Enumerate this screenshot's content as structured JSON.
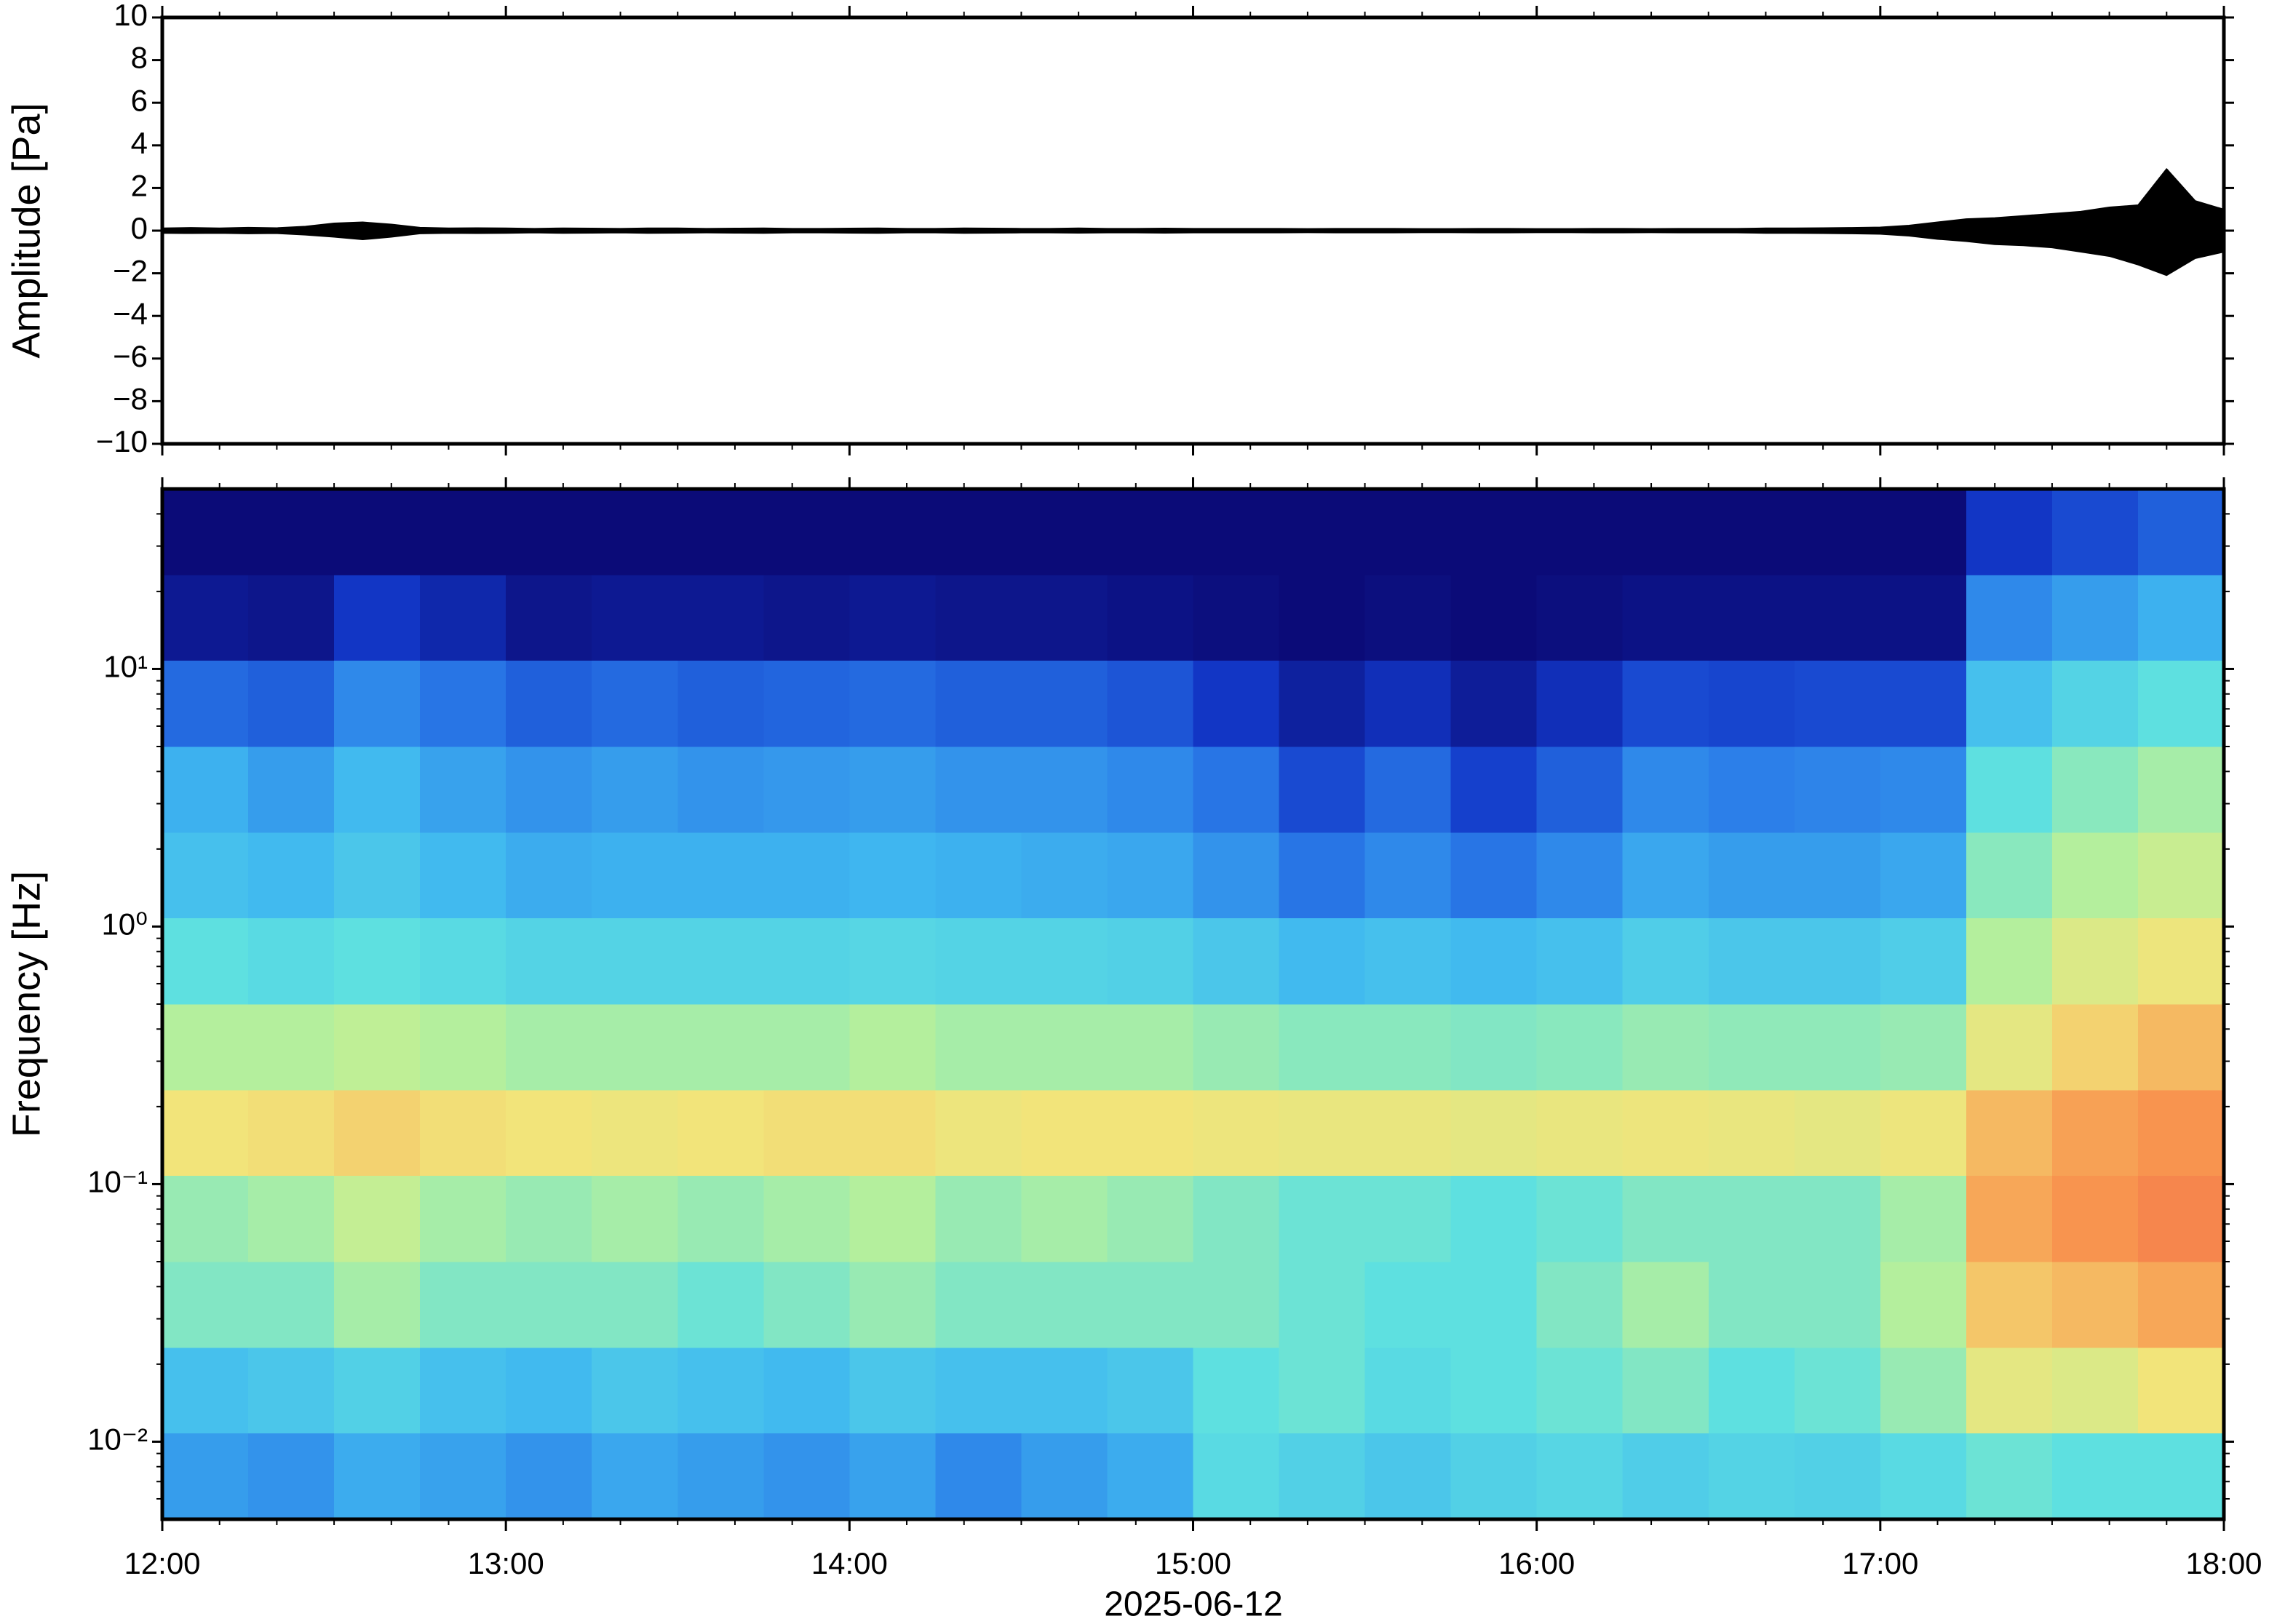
{
  "chart_data": [
    {
      "type": "line",
      "ylabel": "Amplitude [Pa]",
      "xlim": [
        "12:00",
        "18:00"
      ],
      "ylim": [
        -10,
        10
      ],
      "yticks": [
        {
          "value": -10,
          "label": "−10"
        },
        {
          "value": -8,
          "label": "−8"
        },
        {
          "value": -6,
          "label": "−6"
        },
        {
          "value": -4,
          "label": "−4"
        },
        {
          "value": -2,
          "label": "−2"
        },
        0,
        2,
        4,
        6,
        8,
        10
      ],
      "x": [
        "12:00",
        "12:05",
        "12:10",
        "12:15",
        "12:20",
        "12:25",
        "12:30",
        "12:35",
        "12:40",
        "12:45",
        "12:50",
        "12:55",
        "13:00",
        "13:05",
        "13:10",
        "13:15",
        "13:20",
        "13:25",
        "13:30",
        "13:35",
        "13:40",
        "13:45",
        "13:50",
        "13:55",
        "14:00",
        "14:05",
        "14:10",
        "14:15",
        "14:20",
        "14:25",
        "14:30",
        "14:35",
        "14:40",
        "14:45",
        "14:50",
        "14:55",
        "15:00",
        "15:05",
        "15:10",
        "15:15",
        "15:20",
        "15:25",
        "15:30",
        "15:35",
        "15:40",
        "15:45",
        "15:50",
        "15:55",
        "16:00",
        "16:05",
        "16:10",
        "16:15",
        "16:20",
        "16:25",
        "16:30",
        "16:35",
        "16:40",
        "16:45",
        "16:50",
        "16:55",
        "17:00",
        "17:05",
        "17:10",
        "17:15",
        "17:20",
        "17:25",
        "17:30",
        "17:35",
        "17:40",
        "17:45",
        "17:50",
        "17:55",
        "18:00"
      ],
      "series": [
        {
          "color": "#000000",
          "values": [
            0.12,
            0.14,
            0.12,
            0.15,
            0.13,
            0.2,
            0.35,
            0.4,
            0.3,
            0.15,
            0.12,
            0.13,
            0.12,
            0.1,
            0.12,
            0.11,
            0.1,
            0.12,
            0.12,
            0.1,
            0.11,
            0.12,
            0.1,
            0.1,
            0.11,
            0.12,
            0.1,
            0.1,
            0.12,
            0.11,
            0.1,
            0.1,
            0.12,
            0.1,
            0.1,
            0.11,
            0.1,
            0.1,
            0.1,
            0.1,
            0.09,
            0.1,
            0.1,
            0.1,
            0.09,
            0.09,
            0.1,
            0.1,
            0.09,
            0.09,
            0.1,
            0.1,
            0.09,
            0.1,
            0.1,
            0.1,
            0.12,
            0.12,
            0.13,
            0.14,
            0.16,
            0.25,
            0.4,
            0.55,
            0.6,
            0.7,
            0.8,
            0.9,
            1.1,
            1.2,
            2.9,
            1.4,
            1.0
          ]
        },
        {
          "color": "#000000",
          "values": [
            -0.12,
            -0.13,
            -0.12,
            -0.14,
            -0.13,
            -0.2,
            -0.3,
            -0.42,
            -0.3,
            -0.14,
            -0.12,
            -0.13,
            -0.12,
            -0.1,
            -0.12,
            -0.11,
            -0.1,
            -0.12,
            -0.11,
            -0.1,
            -0.11,
            -0.12,
            -0.1,
            -0.1,
            -0.11,
            -0.12,
            -0.1,
            -0.1,
            -0.12,
            -0.11,
            -0.1,
            -0.1,
            -0.11,
            -0.1,
            -0.1,
            -0.11,
            -0.1,
            -0.1,
            -0.1,
            -0.1,
            -0.09,
            -0.1,
            -0.1,
            -0.1,
            -0.09,
            -0.09,
            -0.1,
            -0.1,
            -0.09,
            -0.09,
            -0.1,
            -0.1,
            -0.09,
            -0.1,
            -0.1,
            -0.1,
            -0.12,
            -0.12,
            -0.13,
            -0.14,
            -0.16,
            -0.25,
            -0.4,
            -0.5,
            -0.65,
            -0.7,
            -0.8,
            -1.0,
            -1.2,
            -1.6,
            -2.1,
            -1.3,
            -1.0
          ]
        }
      ]
    },
    {
      "type": "heatmap",
      "ylabel": "Frequency [Hz]",
      "xlabel": "2025-06-12",
      "xlim": [
        "12:00",
        "18:00"
      ],
      "xticks": [
        "12:00",
        "13:00",
        "14:00",
        "15:00",
        "16:00",
        "17:00",
        "18:00"
      ],
      "ylim": [
        0.005,
        50
      ],
      "log_y": true,
      "yticks": [
        {
          "value": 0.01,
          "label": "10⁻²"
        },
        {
          "value": 0.1,
          "label": "10⁻¹"
        },
        {
          "value": 1,
          "label": "10⁰"
        },
        {
          "value": 10,
          "label": "10¹"
        }
      ],
      "x_bins": [
        "12:00",
        "12:15",
        "12:30",
        "12:45",
        "13:00",
        "13:15",
        "13:30",
        "13:45",
        "14:00",
        "14:15",
        "14:30",
        "14:45",
        "15:00",
        "15:15",
        "15:30",
        "15:45",
        "16:00",
        "16:15",
        "16:30",
        "16:45",
        "17:00",
        "17:15",
        "17:30",
        "17:45",
        "18:00"
      ],
      "y_bins": [
        0.005,
        0.0108,
        0.0232,
        0.05,
        0.108,
        0.232,
        0.5,
        1.08,
        2.32,
        5,
        10.8,
        23.2,
        50
      ],
      "zlim": [
        0,
        1
      ],
      "colormap": [
        "#0b0b78",
        "#1238c8",
        "#2a7ae8",
        "#40b8f0",
        "#5ee0e0",
        "#b8f09a",
        "#f2e47a",
        "#f89850",
        "#f04040"
      ],
      "z": [
        [
          0.32,
          0.3,
          0.35,
          0.33,
          0.3,
          0.34,
          0.32,
          0.3,
          0.33,
          0.28,
          0.32,
          0.35,
          0.48,
          0.45,
          0.42,
          0.45,
          0.47,
          0.44,
          0.46,
          0.45,
          0.48,
          0.52,
          0.5,
          0.5
        ],
        [
          0.4,
          0.42,
          0.45,
          0.4,
          0.38,
          0.42,
          0.4,
          0.38,
          0.42,
          0.4,
          0.4,
          0.42,
          0.5,
          0.52,
          0.48,
          0.5,
          0.52,
          0.55,
          0.5,
          0.52,
          0.58,
          0.72,
          0.7,
          0.75
        ],
        [
          0.55,
          0.55,
          0.6,
          0.55,
          0.55,
          0.55,
          0.52,
          0.55,
          0.58,
          0.55,
          0.55,
          0.55,
          0.55,
          0.52,
          0.5,
          0.5,
          0.55,
          0.6,
          0.55,
          0.55,
          0.62,
          0.8,
          0.82,
          0.85
        ],
        [
          0.58,
          0.6,
          0.65,
          0.6,
          0.58,
          0.6,
          0.58,
          0.6,
          0.62,
          0.58,
          0.6,
          0.58,
          0.55,
          0.52,
          0.52,
          0.5,
          0.52,
          0.55,
          0.55,
          0.55,
          0.6,
          0.85,
          0.88,
          0.9
        ],
        [
          0.75,
          0.76,
          0.78,
          0.76,
          0.75,
          0.74,
          0.75,
          0.76,
          0.76,
          0.74,
          0.75,
          0.75,
          0.74,
          0.73,
          0.73,
          0.72,
          0.73,
          0.74,
          0.73,
          0.72,
          0.74,
          0.82,
          0.86,
          0.88
        ],
        [
          0.62,
          0.62,
          0.64,
          0.62,
          0.6,
          0.6,
          0.6,
          0.6,
          0.62,
          0.6,
          0.6,
          0.6,
          0.58,
          0.56,
          0.56,
          0.55,
          0.56,
          0.58,
          0.57,
          0.57,
          0.58,
          0.72,
          0.78,
          0.82
        ],
        [
          0.5,
          0.48,
          0.5,
          0.48,
          0.46,
          0.46,
          0.46,
          0.46,
          0.47,
          0.46,
          0.46,
          0.45,
          0.42,
          0.38,
          0.4,
          0.38,
          0.4,
          0.44,
          0.42,
          0.42,
          0.44,
          0.62,
          0.7,
          0.74
        ],
        [
          0.4,
          0.38,
          0.42,
          0.38,
          0.35,
          0.36,
          0.36,
          0.36,
          0.37,
          0.36,
          0.35,
          0.34,
          0.3,
          0.24,
          0.28,
          0.24,
          0.28,
          0.34,
          0.32,
          0.32,
          0.34,
          0.56,
          0.62,
          0.66
        ],
        [
          0.36,
          0.32,
          0.38,
          0.33,
          0.3,
          0.32,
          0.3,
          0.31,
          0.32,
          0.3,
          0.3,
          0.28,
          0.24,
          0.16,
          0.22,
          0.14,
          0.2,
          0.28,
          0.26,
          0.27,
          0.28,
          0.5,
          0.56,
          0.6
        ],
        [
          0.22,
          0.2,
          0.28,
          0.24,
          0.2,
          0.22,
          0.2,
          0.21,
          0.22,
          0.2,
          0.2,
          0.18,
          0.12,
          0.06,
          0.1,
          0.05,
          0.1,
          0.16,
          0.15,
          0.16,
          0.16,
          0.4,
          0.46,
          0.5
        ],
        [
          0.04,
          0.03,
          0.12,
          0.08,
          0.03,
          0.04,
          0.04,
          0.03,
          0.04,
          0.03,
          0.03,
          0.02,
          0.01,
          0,
          0.01,
          0,
          0.01,
          0.02,
          0.02,
          0.02,
          0.02,
          0.28,
          0.32,
          0.36
        ],
        [
          0,
          0,
          0,
          0,
          0,
          0,
          0,
          0,
          0,
          0,
          0,
          0,
          0,
          0,
          0,
          0,
          0,
          0,
          0,
          0,
          0,
          0.12,
          0.16,
          0.2
        ]
      ]
    }
  ]
}
